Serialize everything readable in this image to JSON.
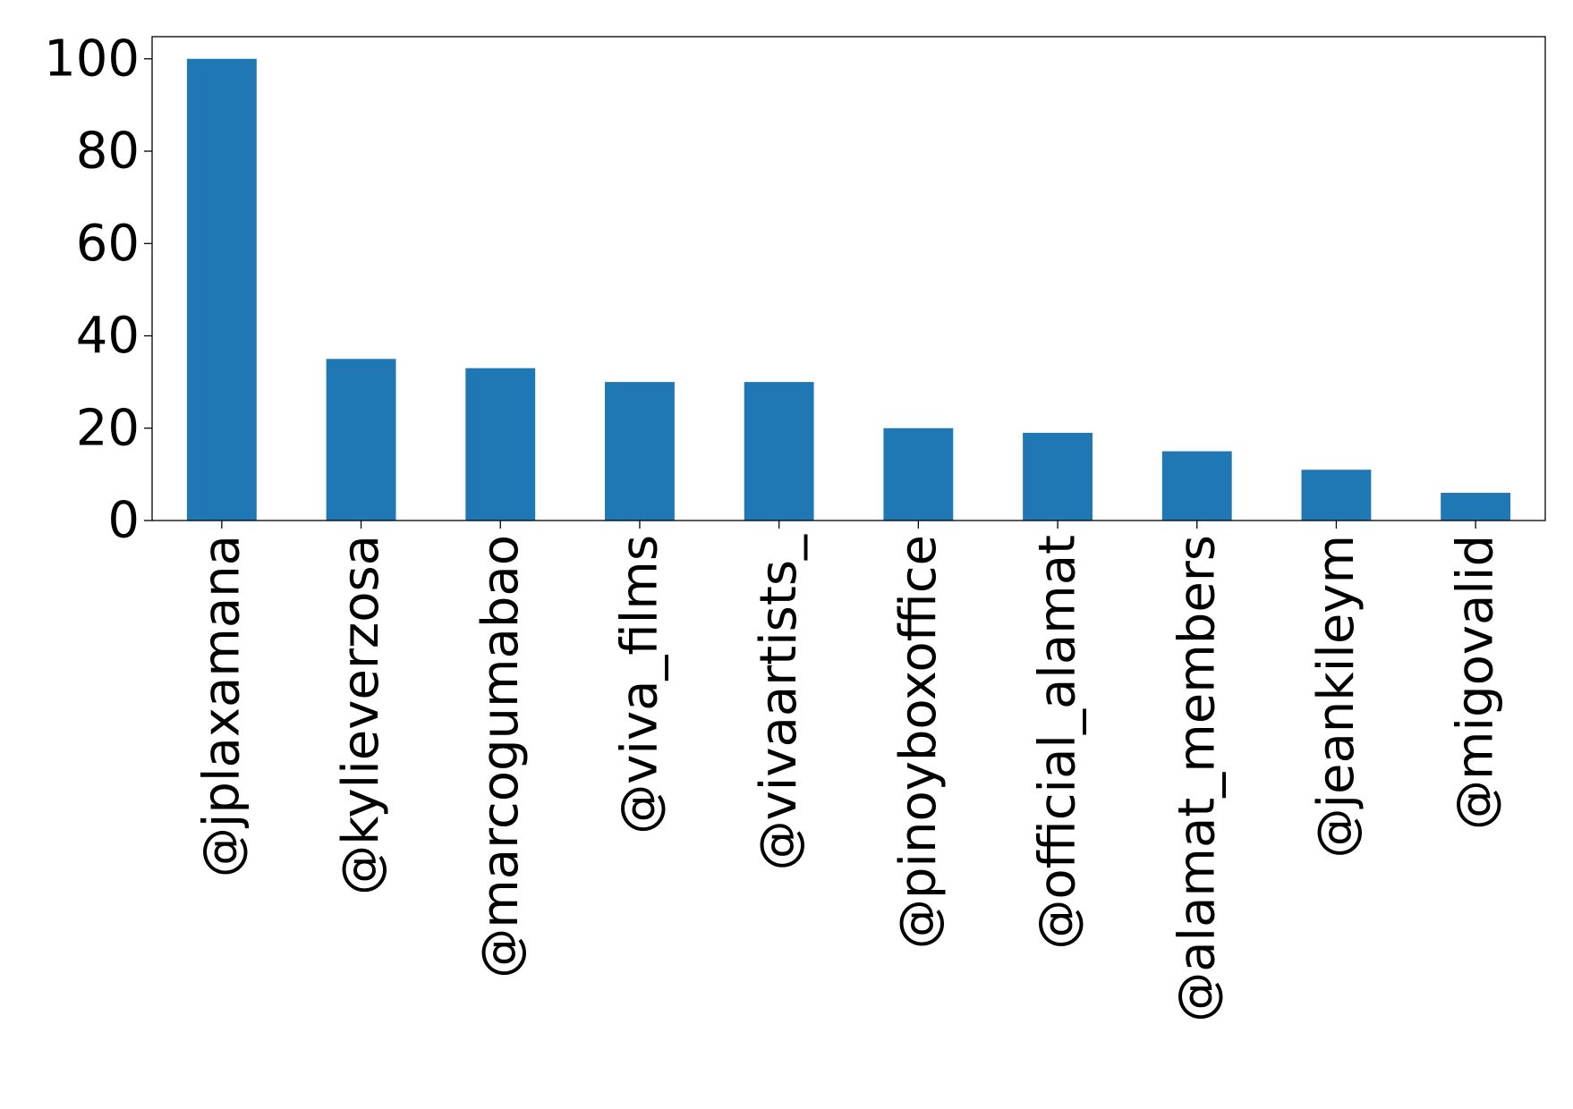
{
  "chart_data": {
    "type": "bar",
    "categories": [
      "@jplaxamana",
      "@kylieverzosa",
      "@marcogumabao",
      "@viva_films",
      "@vivaartists_",
      "@pinoyboxoffice",
      "@official_alamat",
      "@alamat_members",
      "@jeankileym",
      "@migovalid"
    ],
    "values": [
      100,
      35,
      33,
      30,
      30,
      20,
      19,
      15,
      11,
      6
    ],
    "yticks": [
      "0",
      "20",
      "40",
      "60",
      "80",
      "100"
    ],
    "ylim": [
      0,
      104.8
    ],
    "bar_color": "#1f77b4",
    "grid": false,
    "legend": "none"
  }
}
